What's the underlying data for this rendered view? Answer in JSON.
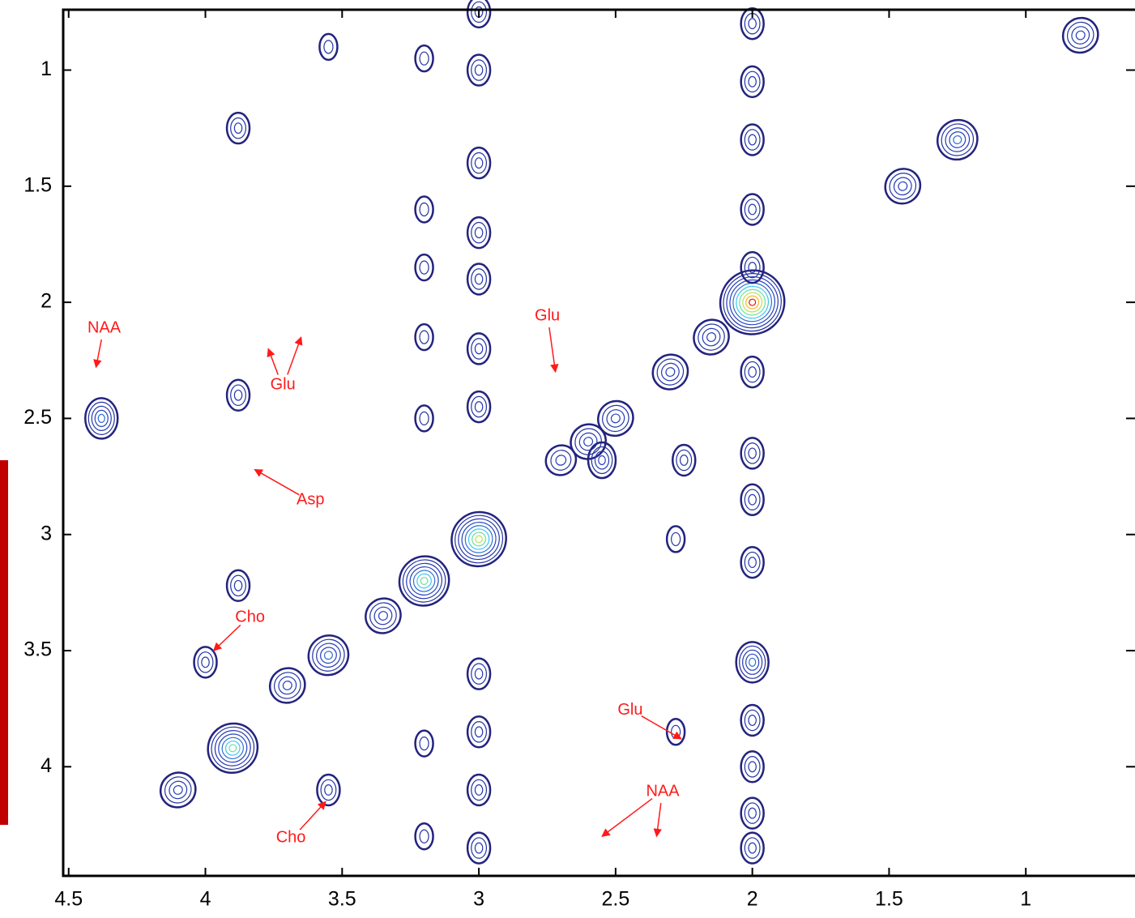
{
  "chart_data": {
    "type": "contour",
    "xlim": [
      4.52,
      0.58
    ],
    "ylim": [
      0.74,
      4.47
    ],
    "xticks": [
      4.5,
      4,
      3.5,
      3,
      2.5,
      2,
      1.5,
      1
    ],
    "yticks": [
      1,
      1.5,
      2,
      2.5,
      3,
      3.5,
      4
    ],
    "line_color": "#23237f",
    "peaks": {
      "x": [
        2.0,
        3.0,
        3.2,
        3.9,
        3.55,
        3.7,
        2.3,
        2.5,
        2.6,
        1.25,
        1.45,
        0.8,
        2.15,
        4.1,
        3.35,
        4.38,
        3.88,
        3.88,
        3.88,
        2.28,
        2.28,
        3.55,
        3.55,
        4.0,
        2.55,
        2.7,
        2.25,
        3.0,
        3.0,
        3.0,
        3.0,
        3.0,
        3.0,
        3.0,
        3.0,
        3.0,
        3.0,
        3.0,
        2.0,
        2.0,
        2.0,
        2.0,
        2.0,
        2.0,
        2.0,
        2.0,
        2.0,
        2.0,
        2.0,
        2.0,
        2.0,
        2.0,
        3.2,
        3.2,
        3.2,
        3.2,
        3.2,
        3.2,
        3.2
      ],
      "y": [
        2.0,
        3.02,
        3.2,
        3.92,
        3.52,
        3.65,
        2.3,
        2.5,
        2.6,
        1.3,
        1.5,
        0.85,
        2.15,
        4.1,
        3.35,
        2.5,
        2.4,
        1.25,
        3.22,
        3.02,
        3.85,
        4.1,
        0.9,
        3.55,
        2.68,
        2.68,
        2.68,
        0.75,
        1.0,
        1.4,
        1.7,
        1.9,
        2.2,
        2.45,
        3.6,
        3.85,
        4.1,
        4.35,
        0.8,
        1.05,
        1.3,
        1.6,
        1.85,
        2.3,
        2.65,
        2.85,
        3.12,
        3.55,
        3.8,
        4.0,
        4.2,
        4.35,
        0.95,
        1.6,
        1.85,
        2.15,
        2.5,
        3.9,
        4.3
      ],
      "intensity": [
        10,
        8,
        7,
        7,
        5,
        4,
        4,
        4,
        4,
        5,
        4,
        4,
        4,
        4,
        4,
        5,
        3,
        3,
        3,
        2,
        2,
        3,
        2,
        3,
        4,
        3,
        3,
        3,
        3,
        3,
        3,
        3,
        3,
        3,
        3,
        3,
        3,
        3,
        3,
        3,
        3,
        3,
        3,
        3,
        3,
        3,
        3,
        5,
        3,
        3,
        3,
        3,
        2,
        2,
        2,
        2,
        2,
        2,
        2
      ]
    },
    "annotations": [
      {
        "text": "NAA",
        "points": [
          [
            4.4,
            2.28
          ]
        ]
      },
      {
        "text": "Glu",
        "points": [
          [
            3.77,
            2.2
          ],
          [
            3.65,
            2.15
          ]
        ]
      },
      {
        "text": "Asp",
        "points": [
          [
            3.82,
            2.72
          ]
        ]
      },
      {
        "text": "Glu",
        "points": [
          [
            2.72,
            2.3
          ]
        ]
      },
      {
        "text": "Cho",
        "points": [
          [
            3.97,
            3.5
          ]
        ]
      },
      {
        "text": "Cho",
        "points": [
          [
            3.56,
            4.15
          ]
        ]
      },
      {
        "text": "Glu",
        "points": [
          [
            2.26,
            3.88
          ]
        ]
      },
      {
        "text": "NAA",
        "points": [
          [
            2.55,
            4.3
          ],
          [
            2.35,
            4.3
          ]
        ]
      }
    ]
  }
}
